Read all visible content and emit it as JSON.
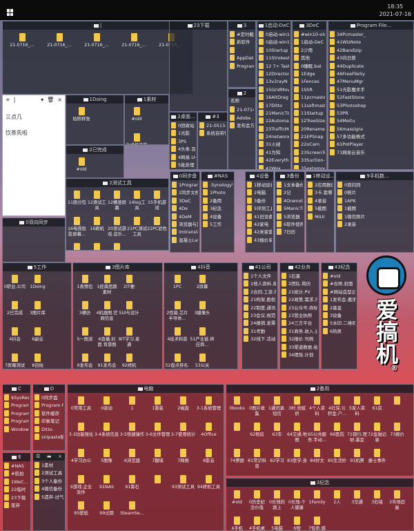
{
  "taskbar": {
    "time": "18:35",
    "date": "2021-07-16",
    "start_icon": "windows-logo-icon"
  },
  "note": {
    "toolbar": [
      "+",
      "|",
      "▾",
      "🗑",
      "×"
    ],
    "lines": [
      "三点几",
      "饮茶先啦"
    ]
  },
  "list_widget": {
    "toolbar": [
      "☰",
      "▬",
      "×"
    ],
    "items": [
      "1素材",
      "2测试工具",
      "3个人备份",
      "4微信备份",
      "5遗弃-过气"
    ]
  },
  "logo": {
    "text": "爱搞机",
    "mark": "®"
  },
  "panels": [
    {
      "title": "|",
      "items": [
        "21-0716_...",
        "21-0716_...",
        "21-0716_...",
        "21-0716_...",
        "21-0716_..."
      ]
    },
    {
      "title": "1Doing",
      "items": [
        "拍照样张"
      ]
    },
    {
      "title": "1素材",
      "items": [
        "#old",
        "台式机开箱"
      ]
    },
    {
      "title": "2已完成",
      "items": [
        "#old",
        "2021"
      ]
    },
    {
      "title": "23下载",
      "items": []
    },
    {
      "title": "3",
      "items": [
        "#定时截图",
        "新软件",
        "",
        "AppData",
        "Program"
      ]
    },
    {
      "title": "2",
      "header": "名称",
      "items": [
        "21-0714...",
        "Adobe ...",
        "发布会方..."
      ]
    },
    {
      "title": "1启动-DeC",
      "items": [
        "0启动-win10 Pr",
        "0启动-win10",
        "10Startup Dela",
        "11StrokesPlus",
        "12 7+ Taskbar",
        "12Directory Op",
        "13v2rayN",
        "15GridMove",
        "16AltDrag",
        "17Ditto",
        "21ManicTime",
        "22AutomaticSc",
        "23TrafficMonit",
        "24networx",
        "31火绒",
        "41为知",
        "42Everything",
        "42Wox",
        "43Synology"
      ]
    },
    {
      "title": "3DeC",
      "items": [
        "#win10-old",
        "1启动-DeC",
        "2少用",
        "其他",
        "0睡眠.bat",
        "1Edge",
        "1Fences",
        "1SSR",
        "11pcmaster",
        "11softmaster",
        "11Startup Del",
        "12TreeSize",
        "20Renamer",
        "21EPSnap",
        "22oCam",
        "23ScreenToGi",
        "33Suction-测",
        "35extgmode"
      ]
    },
    {
      "title": "Program File...",
      "items": [
        "34Pcmaster_",
        "41WizNote",
        "42Bandizip",
        "43向日葵",
        "44Duplicate",
        "46FreeFileSy",
        "47MenuMgr",
        "51光影魔术手",
        "52FastStone",
        "53Photoshop",
        "53PR",
        "54Meitu",
        "56massigra",
        "57多功能格式",
        "61PotPlayer",
        "71网易云音乐"
      ]
    },
    {
      "title": "2桌面...",
      "items": [
        "0回收站",
        "1光影",
        "3PS",
        "4头条.百家.",
        "4网易.UC.-",
        "5批处理"
      ]
    },
    {
      "title": "#3",
      "items": [
        "21-0513小",
        "系统自带快"
      ]
    },
    {
      "title": "2测试工具",
      "items": [
        "11跑分包",
        "12测试工具",
        "12横竖屏幕",
        "14log工具",
        "15手机游戏",
        "16电视投影屏幕...",
        "16刷机",
        "20测试游戏.音乐...",
        "21PC测试工具",
        "22PC验色",
        "23Powe...",
        "PerfDo...",
        "Power-Z"
      ]
    },
    {
      "title": "0双向同步",
      "items": []
    },
    {
      "title": "0同步盘",
      "items": [
        "1Program F",
        "2同步文档",
        "3DeC",
        "4De",
        "4DeM",
        "浏览器与其他",
        "imtranslato",
        "混凝土Lattic"
      ]
    },
    {
      "title": "#NAS",
      "items": [
        ".SynologyWo",
        "1Photo",
        "2备用",
        "3纪念",
        "4设备",
        "5工作"
      ]
    },
    {
      "title": "4设备",
      "items": [
        "1移动设备",
        "2电脑",
        "3备份",
        "5评测工具",
        "41旧设备",
        "42家电",
        "42米家套装",
        "43报价单.抢"
      ]
    },
    {
      "title": "3备份",
      "items": [
        "1文本备份",
        "2记",
        "4Onenote备",
        "5ManicTim",
        "5浏览器",
        "6软件使用记",
        "7日历"
      ]
    },
    {
      "title": "1移动设...",
      "items": [
        "2应用数据",
        "3卡.套餐",
        "4录音",
        "5截图",
        "MIUI"
      ]
    },
    {
      "title": "9手机数...",
      "items": [
        "0双向同",
        "0照片",
        "1APK",
        "1截图",
        "1微信照片",
        "2录音"
      ]
    },
    {
      "title": "5工作",
      "items": [
        "0职业.公司",
        "1Doing",
        "2已完成",
        "3图片库",
        "4抖音",
        "6副业",
        "7屏幕测试",
        "8自拍",
        "41公司",
        "42业务",
        "43纪念",
        "21-0705老"
      ]
    },
    {
      "title": "3图片库",
      "items": [
        "1表情包",
        "1经典思路素材",
        "2IT梗",
        "3横仿",
        "4机器图.官网信息",
        "5UI与设计",
        "5一图流",
        "6直播.封面.背景图",
        "8IT学习.麦通",
        "9发布会PPT",
        "91发布会PPT",
        "92拷机"
      ]
    },
    {
      "title": "4抖音",
      "items": [
        "1PC",
        "2屏幕",
        "2性能.芯片半导体...",
        "3摄像头",
        "4技术科普",
        "51产业链.供应商...",
        "52盘点排名.占比",
        "53公关",
        "老参数.过期数据"
      ]
    },
    {
      "title": "41公司",
      "items": [
        "1个人文件",
        "1他人资料.身份",
        "2合同.工资.社保",
        "21构架.股权.资",
        "22制度.通讯录",
        "23会议.规范",
        "24报销.发票",
        "31考勤",
        "32线下.活动.探"
      ]
    },
    {
      "title": "42业务",
      "items": [
        "1石墨",
        "2团队.简历",
        "21统计.PV",
        "22政策.需求.评论",
        "23公众号.商标认证",
        "23营业执照",
        "24三方平台",
        "31商务.收入.业务",
        "32报价.刊例",
        "33渠道数据.给客户",
        "34绩效.计划"
      ]
    },
    {
      "title": "43纪念",
      "items": [
        "#old",
        "#合照.封面",
        "#网站造型记录",
        "1发布会.邀请函",
        "2基金",
        "3设备",
        "5水印.二维码",
        "6热男"
      ]
    },
    {
      "title": "C",
      "items": [
        "$SysReset",
        "Program F",
        "Program F",
        "ProgramD",
        "Windows"
      ]
    },
    {
      "title": "D",
      "items": [
        "0同步盘",
        "Program File",
        "软件缓存",
        "印象笔记",
        "Ditto",
        "snipaste贴图"
      ]
    },
    {
      "title": "E",
      "items": [
        "#NAS",
        "#航拍",
        "1WeC...",
        "22临时",
        "23下载",
        "废弃"
      ]
    },
    {
      "title": "电脑",
      "items": [
        "0常用工具",
        "0驱动",
        "1",
        "1重装",
        "2磁盘",
        "3-1系统管理",
        "3-3功能强化",
        "3-4系统信息",
        "3-5快捷操作",
        "3-6文件管理",
        "3-7使用统计",
        "4Office",
        "4学习办公",
        "5图像",
        "6浏览器",
        "7翻墙",
        "7网络",
        "8影音",
        "9游戏.企业软件",
        "91NAS",
        "91鲁石",
        "",
        "93测试工具",
        "94拷机工具",
        "95壁纸",
        "99过期",
        "SteamSe..."
      ]
    },
    {
      "title": "2备用",
      "items": [
        "0books",
        "0图片收集",
        "1通讯录.短信",
        "3村.党组织",
        "4个人资料",
        "4社保.公积金.户...",
        "5家人资料",
        "61房",
        "",
        "",
        "62租房",
        "63车",
        "64交通.地图",
        "65公共服务.手动...",
        "66医院",
        "71银行.理财.基金",
        "72金融记录",
        "73报价",
        "74票据",
        "81常识科普",
        "82学习",
        "83医学.身",
        "84好文",
        "85生活妙",
        "91机票",
        "爵士事件"
      ]
    },
    {
      "title": "3纪念",
      "items": [
        "#old",
        "0历史纪念价值",
        "0长残的路上",
        "0长残-个人健康",
        "1Family",
        "2人",
        "3交通",
        "3石墙",
        "3市场旧屋",
        "4手机",
        "4手机桌面",
        "5电脑",
        "6物",
        "7惊奇.感动"
      ]
    }
  ]
}
